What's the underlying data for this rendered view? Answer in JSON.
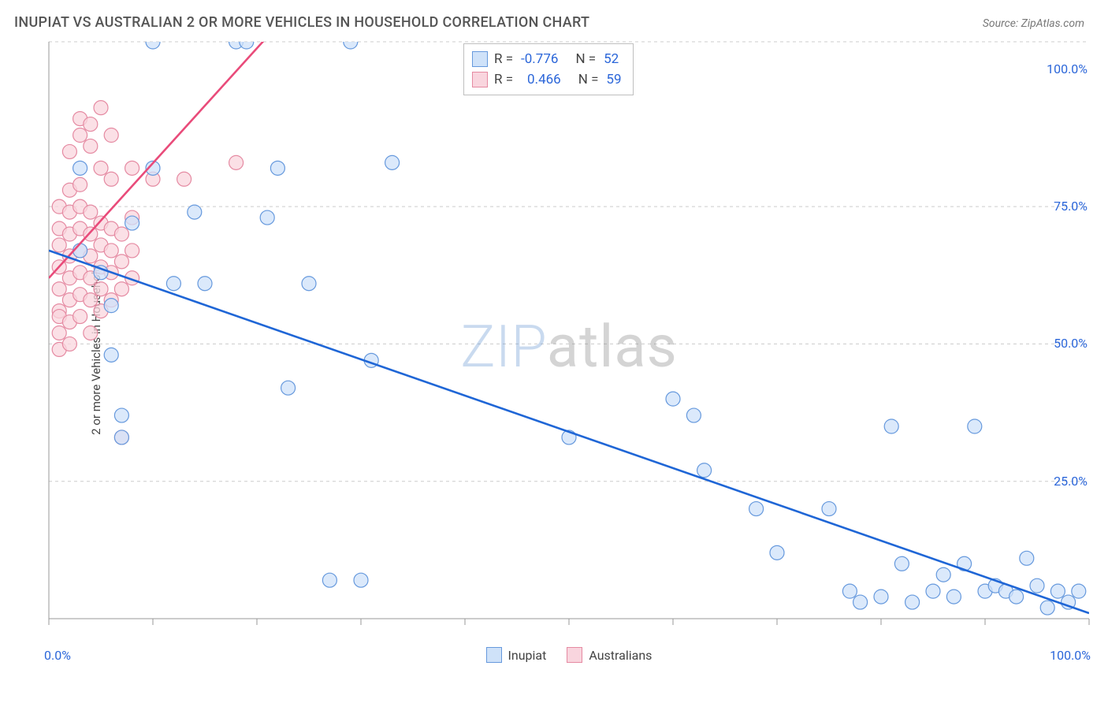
{
  "header": {
    "title": "INUPIAT VS AUSTRALIAN 2 OR MORE VEHICLES IN HOUSEHOLD CORRELATION CHART",
    "source_prefix": "Source: ",
    "source_name": "ZipAtlas.com"
  },
  "watermark": {
    "z": "Z",
    "i": "I",
    "p": "P",
    "rest": "atlas"
  },
  "chart": {
    "type": "scatter",
    "ylabel": "2 or more Vehicles in Household",
    "xlim": [
      0,
      100
    ],
    "ylim": [
      0,
      105
    ],
    "xtick_labels": {
      "0": "0.0%",
      "100": "100.0%"
    },
    "ytick_labels": {
      "25": "25.0%",
      "50": "50.0%",
      "75": "75.0%",
      "100": "100.0%"
    },
    "grid_color": "#cccccc",
    "axis_color": "#999999",
    "background": "#ffffff",
    "marker_radius": 9,
    "marker_stroke_width": 1.2,
    "line_width": 2.6,
    "series": [
      {
        "name": "Inupiat",
        "fill": "#cfe2f9",
        "stroke": "#6699dd",
        "line_color": "#1f66d6",
        "r_value": "-0.776",
        "n_value": "52",
        "trend": {
          "x1": 0,
          "y1": 67,
          "x2": 100,
          "y2": 1
        },
        "points": [
          [
            3,
            67
          ],
          [
            3,
            82
          ],
          [
            5,
            63
          ],
          [
            6,
            57
          ],
          [
            6,
            48
          ],
          [
            7,
            37
          ],
          [
            7,
            33
          ],
          [
            8,
            72
          ],
          [
            10,
            105
          ],
          [
            10,
            82
          ],
          [
            12,
            61
          ],
          [
            14,
            74
          ],
          [
            15,
            61
          ],
          [
            18,
            105
          ],
          [
            19,
            105
          ],
          [
            21,
            73
          ],
          [
            22,
            82
          ],
          [
            23,
            42
          ],
          [
            25,
            61
          ],
          [
            27,
            7
          ],
          [
            29,
            105
          ],
          [
            30,
            7
          ],
          [
            31,
            47
          ],
          [
            33,
            83
          ],
          [
            50,
            33
          ],
          [
            60,
            40
          ],
          [
            62,
            37
          ],
          [
            63,
            27
          ],
          [
            68,
            20
          ],
          [
            70,
            12
          ],
          [
            75,
            20
          ],
          [
            77,
            5
          ],
          [
            78,
            3
          ],
          [
            80,
            4
          ],
          [
            81,
            35
          ],
          [
            82,
            10
          ],
          [
            83,
            3
          ],
          [
            85,
            5
          ],
          [
            86,
            8
          ],
          [
            87,
            4
          ],
          [
            88,
            10
          ],
          [
            89,
            35
          ],
          [
            90,
            5
          ],
          [
            91,
            6
          ],
          [
            92,
            5
          ],
          [
            93,
            4
          ],
          [
            94,
            11
          ],
          [
            95,
            6
          ],
          [
            96,
            2
          ],
          [
            97,
            5
          ],
          [
            98,
            3
          ],
          [
            99,
            5
          ]
        ]
      },
      {
        "name": "Australians",
        "fill": "#f9d5de",
        "stroke": "#e58aa2",
        "line_color": "#e94b7a",
        "r_value": "0.466",
        "n_value": "59",
        "trend": {
          "x1": 0,
          "y1": 62,
          "x2": 22,
          "y2": 108
        },
        "points": [
          [
            1,
            52
          ],
          [
            1,
            56
          ],
          [
            1,
            60
          ],
          [
            1,
            64
          ],
          [
            1,
            68
          ],
          [
            1,
            71
          ],
          [
            1,
            75
          ],
          [
            1,
            55
          ],
          [
            1,
            49
          ],
          [
            2,
            50
          ],
          [
            2,
            54
          ],
          [
            2,
            58
          ],
          [
            2,
            62
          ],
          [
            2,
            66
          ],
          [
            2,
            70
          ],
          [
            2,
            74
          ],
          [
            2,
            78
          ],
          [
            2,
            85
          ],
          [
            3,
            55
          ],
          [
            3,
            59
          ],
          [
            3,
            63
          ],
          [
            3,
            67
          ],
          [
            3,
            71
          ],
          [
            3,
            75
          ],
          [
            3,
            79
          ],
          [
            3,
            88
          ],
          [
            3,
            91
          ],
          [
            4,
            52
          ],
          [
            4,
            58
          ],
          [
            4,
            62
          ],
          [
            4,
            66
          ],
          [
            4,
            70
          ],
          [
            4,
            74
          ],
          [
            4,
            86
          ],
          [
            4,
            90
          ],
          [
            5,
            56
          ],
          [
            5,
            60
          ],
          [
            5,
            64
          ],
          [
            5,
            68
          ],
          [
            5,
            72
          ],
          [
            5,
            82
          ],
          [
            5,
            93
          ],
          [
            6,
            58
          ],
          [
            6,
            63
          ],
          [
            6,
            67
          ],
          [
            6,
            71
          ],
          [
            6,
            80
          ],
          [
            6,
            88
          ],
          [
            7,
            60
          ],
          [
            7,
            65
          ],
          [
            7,
            70
          ],
          [
            7,
            33
          ],
          [
            8,
            62
          ],
          [
            8,
            67
          ],
          [
            8,
            73
          ],
          [
            8,
            82
          ],
          [
            10,
            80
          ],
          [
            13,
            80
          ],
          [
            18,
            83
          ]
        ]
      }
    ],
    "legend_bottom": [
      {
        "label": "Inupiat",
        "fill": "#cfe2f9",
        "stroke": "#6699dd"
      },
      {
        "label": "Australians",
        "fill": "#f9d5de",
        "stroke": "#e58aa2"
      }
    ]
  }
}
